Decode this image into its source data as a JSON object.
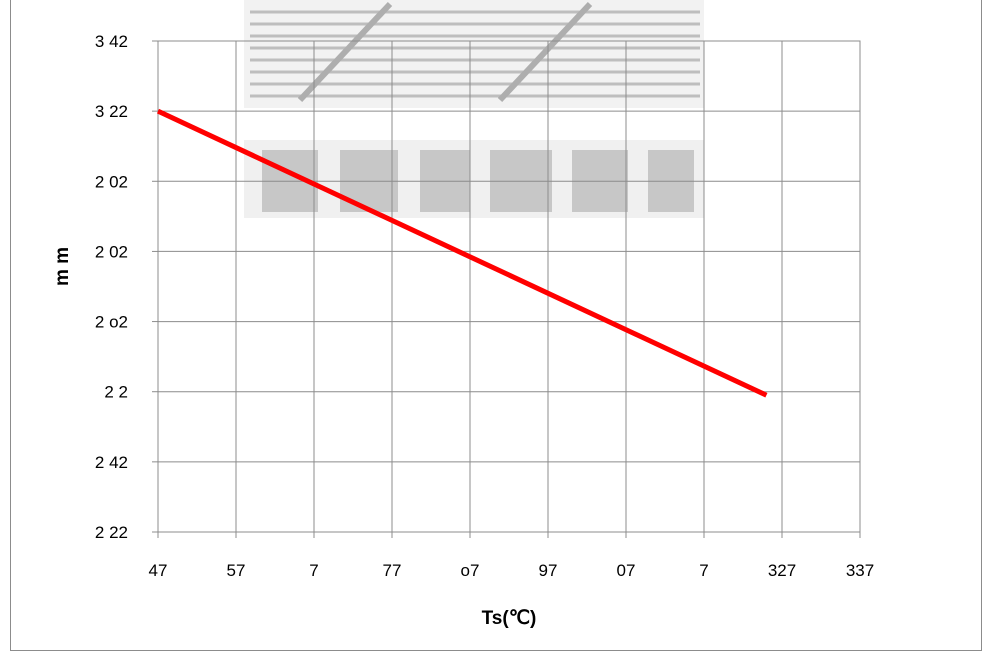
{
  "chart_data": {
    "type": "line",
    "title": "",
    "xlabel": "Ts(℃)",
    "ylabel": "m m",
    "x_tick_labels": [
      "47",
      "57",
      "7",
      "77",
      "o7",
      "97",
      "07",
      "7",
      "327",
      "337"
    ],
    "y_tick_labels": [
      "3 42",
      "3 22",
      "2 02",
      "2 02",
      "2 o2",
      "2   2",
      "2 42",
      "2 22"
    ],
    "x_tick_values": [
      0,
      1,
      2,
      3,
      4,
      5,
      6,
      7,
      8,
      9
    ],
    "y_tick_values": [
      7,
      6,
      5,
      4,
      3,
      2,
      1,
      0
    ],
    "xlim": [
      0,
      9
    ],
    "ylim": [
      0,
      7
    ],
    "grid": true,
    "legend": "none",
    "series": [
      {
        "color": "#ff0000",
        "x": [
          0,
          7.8
        ],
        "y": [
          6.0,
          1.95
        ]
      }
    ]
  }
}
